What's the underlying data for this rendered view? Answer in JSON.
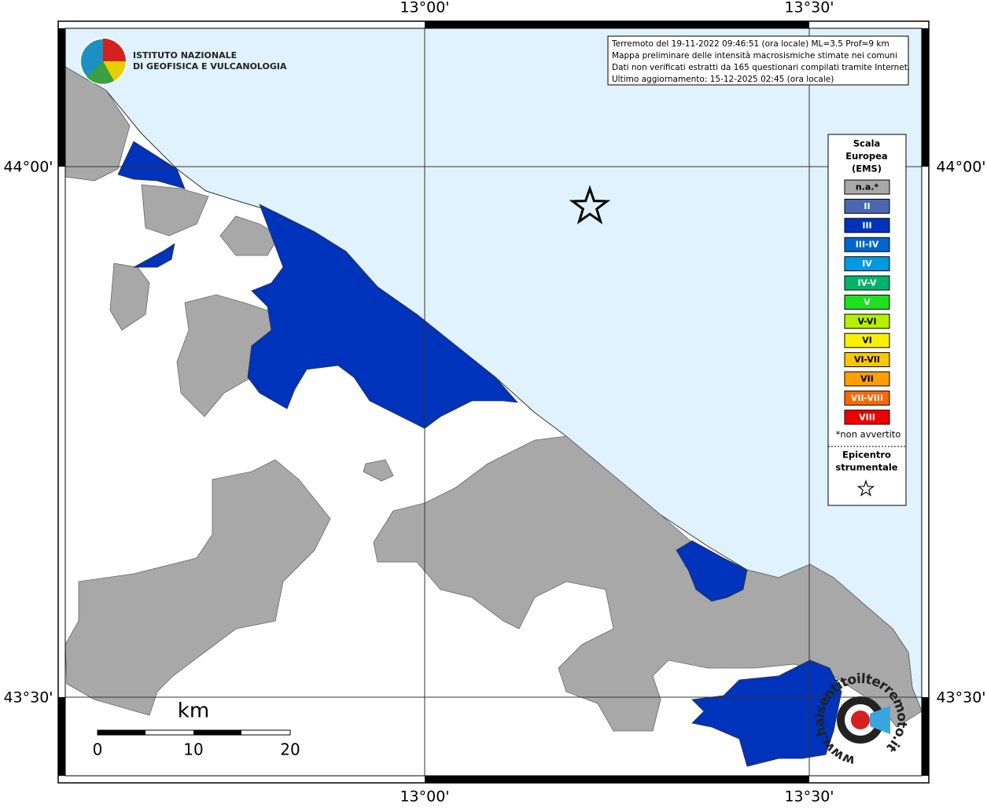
{
  "map": {
    "lon_labels": [
      "13°00'",
      "13°30'"
    ],
    "lat_labels": [
      "44°00'",
      "43°30'"
    ],
    "info": [
      "Terremoto del 19-11-2022 09:46:51 (ora locale) ML=3.5 Prof=9 km",
      "Mappa preliminare delle intensità macrosismiche stimate nei comuni",
      "Dati non verificati estratti da 165 questionari compilati tramite Internet.",
      "Ultimo aggiornamento: 15-12-2025 02:45 (ora locale)"
    ],
    "logo": [
      "ISTITUTO NAZIONALE",
      "DI GEOFISICA E VULCANOLOGIA"
    ],
    "legend": {
      "title": [
        "Scala",
        "Europea",
        "(EMS)"
      ],
      "items": [
        {
          "label": "n.a.*",
          "color": "#a8a8a8"
        },
        {
          "label": "II",
          "color": "#4a67b0"
        },
        {
          "label": "III",
          "color": "#0033bb"
        },
        {
          "label": "III-IV",
          "color": "#0066cc"
        },
        {
          "label": "IV",
          "color": "#0099e0"
        },
        {
          "label": "IV-V",
          "color": "#00b36b"
        },
        {
          "label": "V",
          "color": "#1ee01e"
        },
        {
          "label": "V-VI",
          "color": "#b4f000"
        },
        {
          "label": "VI",
          "color": "#f7f000"
        },
        {
          "label": "VI-VII",
          "color": "#f7c800"
        },
        {
          "label": "VII",
          "color": "#ff9f00"
        },
        {
          "label": "VII-VIII",
          "color": "#ff6600"
        },
        {
          "label": "VIII",
          "color": "#ee0000"
        }
      ],
      "note": "*non avvertito",
      "epicenter": [
        "Epicentro",
        "strumentale"
      ]
    },
    "scale_bar": {
      "unit": "km",
      "labels": [
        "0",
        "10",
        "20"
      ]
    },
    "watermark": "www.haisentitoilterremoto.it"
  }
}
